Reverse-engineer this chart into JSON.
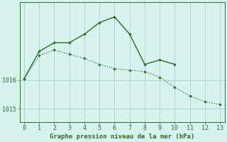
{
  "line1_x": [
    0,
    1,
    2,
    3,
    4,
    5,
    6,
    7,
    8,
    9,
    10
  ],
  "line1_y": [
    1016.05,
    1017.0,
    1017.3,
    1017.3,
    1017.6,
    1018.0,
    1018.2,
    1017.6,
    1016.55,
    1016.7,
    1016.55
  ],
  "line2_x": [
    0,
    1,
    2,
    3,
    4,
    5,
    6,
    7,
    8,
    9,
    10,
    11,
    12,
    13
  ],
  "line2_y": [
    1016.05,
    1016.85,
    1017.05,
    1016.9,
    1016.75,
    1016.55,
    1016.4,
    1016.35,
    1016.3,
    1016.1,
    1015.75,
    1015.45,
    1015.25,
    1015.15
  ],
  "color": "#2d6a2d",
  "bg_color": "#d6f3ee",
  "grid_major_color": "#aacfca",
  "grid_minor_color": "#c8e8e3",
  "xlabel": "Graphe pression niveau de la mer (hPa)",
  "ylim": [
    1014.55,
    1018.7
  ],
  "xlim": [
    -0.3,
    13.3
  ],
  "yticks": [
    1015,
    1016
  ],
  "xticks": [
    0,
    1,
    2,
    3,
    4,
    5,
    6,
    7,
    8,
    9,
    10,
    11,
    12,
    13
  ],
  "tick_fontsize": 6.0,
  "xlabel_fontsize": 6.5
}
